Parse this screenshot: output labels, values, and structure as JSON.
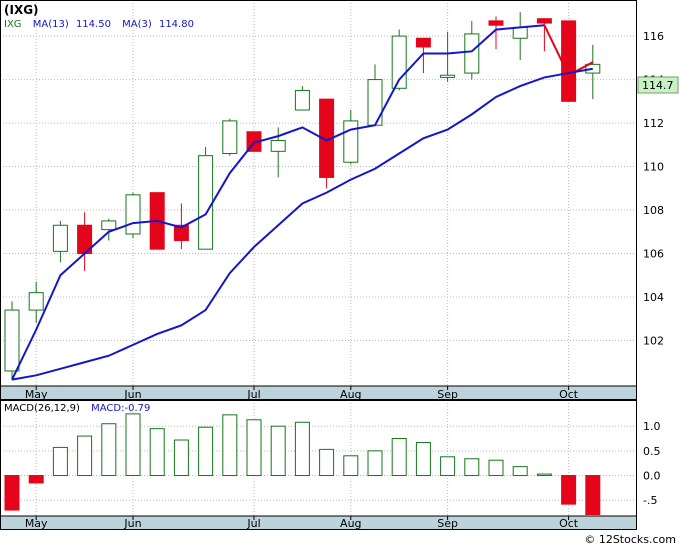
{
  "title": "(IXG)",
  "credit": "© 12Stocks.com",
  "price_panel": {
    "legend": {
      "symbol": "IXG",
      "ma_fast_label": "MA(13)",
      "ma_fast_value": "114.50",
      "ma_slow_label": "MA(3)",
      "ma_slow_value": "114.80"
    },
    "last_price_label": "114.7"
  },
  "macd_panel": {
    "legend": {
      "label": "MACD(26,12,9)",
      "value_label": "MACD:-0.79"
    }
  },
  "colors": {
    "up_candle": "#16761b",
    "down_candle": "#e4051b",
    "ma_line": "#1515c9",
    "ma_recent": "#e4051b",
    "x_axis_band": "#bdd3dc",
    "last_price_bg": "#c9f2c4",
    "grid": "#b9b9b9"
  },
  "chart_data": [
    {
      "type": "candlestick",
      "ticker": "IXG",
      "x_labels": [
        "May",
        "Jun",
        "Jul",
        "Aug",
        "Sep",
        "Oct"
      ],
      "x_label_week_index": [
        1,
        5,
        10,
        14,
        18,
        23
      ],
      "ylim": [
        100,
        117.2
      ],
      "y_ticks": [
        102,
        104,
        106,
        108,
        110,
        112,
        114,
        116
      ],
      "grid": true,
      "candles": [
        {
          "o": 100.6,
          "h": 103.8,
          "l": 100.2,
          "c": 103.4
        },
        {
          "o": 103.4,
          "h": 104.7,
          "l": 102.8,
          "c": 104.2
        },
        {
          "o": 106.1,
          "h": 107.5,
          "l": 105.6,
          "c": 107.3
        },
        {
          "o": 107.3,
          "h": 107.9,
          "l": 105.2,
          "c": 106.0
        },
        {
          "o": 107.1,
          "h": 107.6,
          "l": 106.6,
          "c": 107.5
        },
        {
          "o": 106.9,
          "h": 108.8,
          "l": 106.7,
          "c": 108.7
        },
        {
          "o": 108.8,
          "h": 108.8,
          "l": 106.2,
          "c": 106.2
        },
        {
          "o": 107.3,
          "h": 108.3,
          "l": 106.2,
          "c": 106.6
        },
        {
          "o": 106.2,
          "h": 110.9,
          "l": 106.2,
          "c": 110.5
        },
        {
          "o": 110.6,
          "h": 112.2,
          "l": 110.5,
          "c": 112.1
        },
        {
          "o": 111.6,
          "h": 111.6,
          "l": 110.7,
          "c": 110.7
        },
        {
          "o": 110.7,
          "h": 111.8,
          "l": 109.5,
          "c": 111.2
        },
        {
          "o": 112.6,
          "h": 113.7,
          "l": 112.6,
          "c": 113.5
        },
        {
          "o": 113.1,
          "h": 113.1,
          "l": 109.0,
          "c": 109.5
        },
        {
          "o": 110.2,
          "h": 112.6,
          "l": 110.1,
          "c": 112.1
        },
        {
          "o": 111.9,
          "h": 114.7,
          "l": 111.9,
          "c": 114.0
        },
        {
          "o": 113.6,
          "h": 116.3,
          "l": 113.5,
          "c": 116.0
        },
        {
          "o": 115.9,
          "h": 115.9,
          "l": 114.3,
          "c": 115.5
        },
        {
          "o": 114.1,
          "h": 116.2,
          "l": 113.9,
          "c": 114.2
        },
        {
          "o": 114.3,
          "h": 116.7,
          "l": 114.0,
          "c": 116.1
        },
        {
          "o": 116.7,
          "h": 116.9,
          "l": 115.4,
          "c": 116.5
        },
        {
          "o": 115.9,
          "h": 117.1,
          "l": 114.9,
          "c": 116.4
        },
        {
          "o": 116.8,
          "h": 116.8,
          "l": 115.3,
          "c": 116.6
        },
        {
          "o": 116.7,
          "h": 116.7,
          "l": 113.0,
          "c": 113.0
        },
        {
          "o": 114.3,
          "h": 115.6,
          "l": 113.1,
          "c": 114.7
        }
      ],
      "series": [
        {
          "name": "MA(3)",
          "values": [
            100.2,
            102.5,
            105.0,
            106.0,
            107.0,
            107.4,
            107.5,
            107.2,
            107.8,
            109.7,
            111.1,
            111.4,
            111.8,
            111.2,
            111.7,
            111.9,
            114.0,
            115.2,
            115.2,
            115.3,
            116.3,
            116.4,
            116.5,
            114.2,
            114.8
          ]
        },
        {
          "name": "MA(13)",
          "values": [
            100.2,
            100.4,
            100.7,
            101.0,
            101.3,
            101.8,
            102.3,
            102.7,
            103.4,
            105.1,
            106.3,
            107.3,
            108.3,
            108.8,
            109.4,
            109.9,
            110.6,
            111.3,
            111.7,
            112.4,
            113.2,
            113.7,
            114.1,
            114.3,
            114.5
          ]
        }
      ]
    },
    {
      "type": "bar",
      "name": "MACD(26,12,9)",
      "ylim": [
        -0.8,
        1.45
      ],
      "y_ticks": [
        -0.5,
        0.0,
        0.5,
        1.0
      ],
      "grid": true,
      "values": [
        -0.7,
        -0.15,
        0.57,
        0.8,
        1.05,
        1.25,
        0.95,
        0.72,
        0.98,
        1.23,
        1.13,
        1.0,
        1.08,
        0.53,
        0.4,
        0.5,
        0.75,
        0.67,
        0.38,
        0.34,
        0.31,
        0.18,
        0.03,
        -0.58,
        -0.79
      ]
    }
  ]
}
